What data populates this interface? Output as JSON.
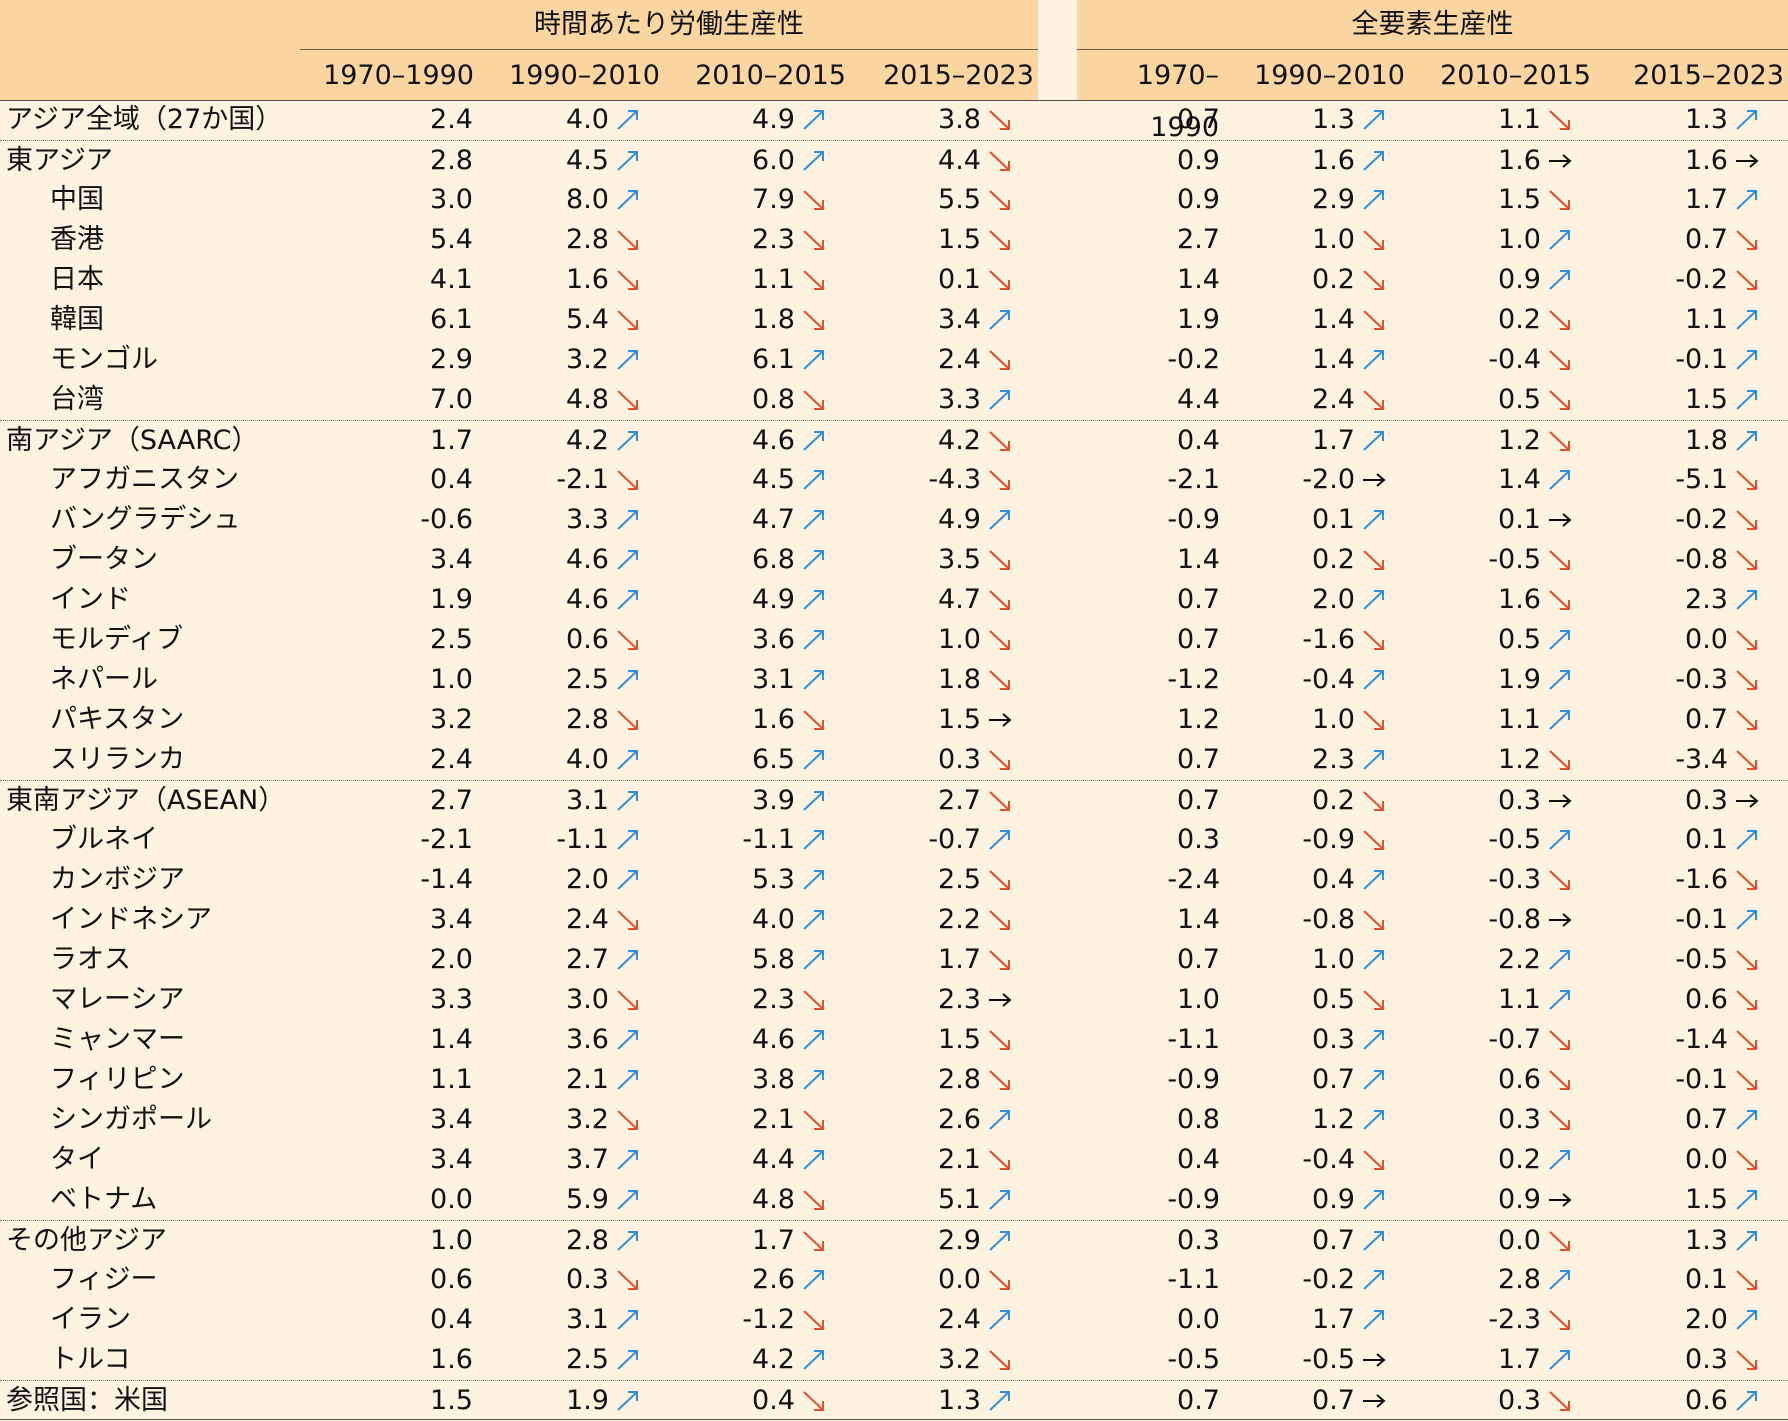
{
  "groups": [
    {
      "label": "時間あたり労働生産性"
    },
    {
      "label": "全要素生産性"
    }
  ],
  "periods": [
    "1970–1990",
    "1990–2010",
    "2010–2015",
    "2015–2023",
    "1970–1990",
    "1990–2010",
    "2010–2015",
    "2015–2023"
  ],
  "colors": {
    "header_bg": "#fcd6a0",
    "body_bg": "#fef2e0",
    "up": "#2f8fd8",
    "down": "#e0502a",
    "flat": "#111111"
  },
  "rows": [
    {
      "name": "アジア全域（27か国）",
      "indent": false,
      "sep": false,
      "cells": [
        [
          "2.4",
          ""
        ],
        [
          "4.0",
          "up"
        ],
        [
          "4.9",
          "up"
        ],
        [
          "3.8",
          "down"
        ],
        [
          "0.7",
          ""
        ],
        [
          "1.3",
          "up"
        ],
        [
          "1.1",
          "down"
        ],
        [
          "1.3",
          "up"
        ]
      ]
    },
    {
      "name": "東アジア",
      "indent": false,
      "sep": true,
      "cells": [
        [
          "2.8",
          ""
        ],
        [
          "4.5",
          "up"
        ],
        [
          "6.0",
          "up"
        ],
        [
          "4.4",
          "down"
        ],
        [
          "0.9",
          ""
        ],
        [
          "1.6",
          "up"
        ],
        [
          "1.6",
          "flat"
        ],
        [
          "1.6",
          "flat"
        ]
      ]
    },
    {
      "name": "中国",
      "indent": true,
      "sep": false,
      "cells": [
        [
          "3.0",
          ""
        ],
        [
          "8.0",
          "up"
        ],
        [
          "7.9",
          "down"
        ],
        [
          "5.5",
          "down"
        ],
        [
          "0.9",
          ""
        ],
        [
          "2.9",
          "up"
        ],
        [
          "1.5",
          "down"
        ],
        [
          "1.7",
          "up"
        ]
      ]
    },
    {
      "name": "香港",
      "indent": true,
      "sep": false,
      "cells": [
        [
          "5.4",
          ""
        ],
        [
          "2.8",
          "down"
        ],
        [
          "2.3",
          "down"
        ],
        [
          "1.5",
          "down"
        ],
        [
          "2.7",
          ""
        ],
        [
          "1.0",
          "down"
        ],
        [
          "1.0",
          "up"
        ],
        [
          "0.7",
          "down"
        ]
      ]
    },
    {
      "name": "日本",
      "indent": true,
      "sep": false,
      "cells": [
        [
          "4.1",
          ""
        ],
        [
          "1.6",
          "down"
        ],
        [
          "1.1",
          "down"
        ],
        [
          "0.1",
          "down"
        ],
        [
          "1.4",
          ""
        ],
        [
          "0.2",
          "down"
        ],
        [
          "0.9",
          "up"
        ],
        [
          "-0.2",
          "down"
        ]
      ]
    },
    {
      "name": "韓国",
      "indent": true,
      "sep": false,
      "cells": [
        [
          "6.1",
          ""
        ],
        [
          "5.4",
          "down"
        ],
        [
          "1.8",
          "down"
        ],
        [
          "3.4",
          "up"
        ],
        [
          "1.9",
          ""
        ],
        [
          "1.4",
          "down"
        ],
        [
          "0.2",
          "down"
        ],
        [
          "1.1",
          "up"
        ]
      ]
    },
    {
      "name": "モンゴル",
      "indent": true,
      "sep": false,
      "cells": [
        [
          "2.9",
          ""
        ],
        [
          "3.2",
          "up"
        ],
        [
          "6.1",
          "up"
        ],
        [
          "2.4",
          "down"
        ],
        [
          "-0.2",
          ""
        ],
        [
          "1.4",
          "up"
        ],
        [
          "-0.4",
          "down"
        ],
        [
          "-0.1",
          "up"
        ]
      ]
    },
    {
      "name": "台湾",
      "indent": true,
      "sep": false,
      "cells": [
        [
          "7.0",
          ""
        ],
        [
          "4.8",
          "down"
        ],
        [
          "0.8",
          "down"
        ],
        [
          "3.3",
          "up"
        ],
        [
          "4.4",
          ""
        ],
        [
          "2.4",
          "down"
        ],
        [
          "0.5",
          "down"
        ],
        [
          "1.5",
          "up"
        ]
      ]
    },
    {
      "name": "南アジア（SAARC）",
      "indent": false,
      "sep": true,
      "cells": [
        [
          "1.7",
          ""
        ],
        [
          "4.2",
          "up"
        ],
        [
          "4.6",
          "up"
        ],
        [
          "4.2",
          "down"
        ],
        [
          "0.4",
          ""
        ],
        [
          "1.7",
          "up"
        ],
        [
          "1.2",
          "down"
        ],
        [
          "1.8",
          "up"
        ]
      ]
    },
    {
      "name": "アフガニスタン",
      "indent": true,
      "sep": false,
      "cells": [
        [
          "0.4",
          ""
        ],
        [
          "-2.1",
          "down"
        ],
        [
          "4.5",
          "up"
        ],
        [
          "-4.3",
          "down"
        ],
        [
          "-2.1",
          ""
        ],
        [
          "-2.0",
          "flat"
        ],
        [
          "1.4",
          "up"
        ],
        [
          "-5.1",
          "down"
        ]
      ]
    },
    {
      "name": "バングラデシュ",
      "indent": true,
      "sep": false,
      "cells": [
        [
          "-0.6",
          ""
        ],
        [
          "3.3",
          "up"
        ],
        [
          "4.7",
          "up"
        ],
        [
          "4.9",
          "up"
        ],
        [
          "-0.9",
          ""
        ],
        [
          "0.1",
          "up"
        ],
        [
          "0.1",
          "flat"
        ],
        [
          "-0.2",
          "down"
        ]
      ]
    },
    {
      "name": "ブータン",
      "indent": true,
      "sep": false,
      "cells": [
        [
          "3.4",
          ""
        ],
        [
          "4.6",
          "up"
        ],
        [
          "6.8",
          "up"
        ],
        [
          "3.5",
          "down"
        ],
        [
          "1.4",
          ""
        ],
        [
          "0.2",
          "down"
        ],
        [
          "-0.5",
          "down"
        ],
        [
          "-0.8",
          "down"
        ]
      ]
    },
    {
      "name": "インド",
      "indent": true,
      "sep": false,
      "cells": [
        [
          "1.9",
          ""
        ],
        [
          "4.6",
          "up"
        ],
        [
          "4.9",
          "up"
        ],
        [
          "4.7",
          "down"
        ],
        [
          "0.7",
          ""
        ],
        [
          "2.0",
          "up"
        ],
        [
          "1.6",
          "down"
        ],
        [
          "2.3",
          "up"
        ]
      ]
    },
    {
      "name": "モルディブ",
      "indent": true,
      "sep": false,
      "cells": [
        [
          "2.5",
          ""
        ],
        [
          "0.6",
          "down"
        ],
        [
          "3.6",
          "up"
        ],
        [
          "1.0",
          "down"
        ],
        [
          "0.7",
          ""
        ],
        [
          "-1.6",
          "down"
        ],
        [
          "0.5",
          "up"
        ],
        [
          "0.0",
          "down"
        ]
      ]
    },
    {
      "name": "ネパール",
      "indent": true,
      "sep": false,
      "cells": [
        [
          "1.0",
          ""
        ],
        [
          "2.5",
          "up"
        ],
        [
          "3.1",
          "up"
        ],
        [
          "1.8",
          "down"
        ],
        [
          "-1.2",
          ""
        ],
        [
          "-0.4",
          "up"
        ],
        [
          "1.9",
          "up"
        ],
        [
          "-0.3",
          "down"
        ]
      ]
    },
    {
      "name": "パキスタン",
      "indent": true,
      "sep": false,
      "cells": [
        [
          "3.2",
          ""
        ],
        [
          "2.8",
          "down"
        ],
        [
          "1.6",
          "down"
        ],
        [
          "1.5",
          "flat"
        ],
        [
          "1.2",
          ""
        ],
        [
          "1.0",
          "down"
        ],
        [
          "1.1",
          "up"
        ],
        [
          "0.7",
          "down"
        ]
      ]
    },
    {
      "name": "スリランカ",
      "indent": true,
      "sep": false,
      "cells": [
        [
          "2.4",
          ""
        ],
        [
          "4.0",
          "up"
        ],
        [
          "6.5",
          "up"
        ],
        [
          "0.3",
          "down"
        ],
        [
          "0.7",
          ""
        ],
        [
          "2.3",
          "up"
        ],
        [
          "1.2",
          "down"
        ],
        [
          "-3.4",
          "down"
        ]
      ]
    },
    {
      "name": "東南アジア（ASEAN）",
      "indent": false,
      "sep": true,
      "cells": [
        [
          "2.7",
          ""
        ],
        [
          "3.1",
          "up"
        ],
        [
          "3.9",
          "up"
        ],
        [
          "2.7",
          "down"
        ],
        [
          "0.7",
          ""
        ],
        [
          "0.2",
          "down"
        ],
        [
          "0.3",
          "flat"
        ],
        [
          "0.3",
          "flat"
        ]
      ]
    },
    {
      "name": "ブルネイ",
      "indent": true,
      "sep": false,
      "cells": [
        [
          "-2.1",
          ""
        ],
        [
          "-1.1",
          "up"
        ],
        [
          "-1.1",
          "up"
        ],
        [
          "-0.7",
          "up"
        ],
        [
          "0.3",
          ""
        ],
        [
          "-0.9",
          "down"
        ],
        [
          "-0.5",
          "up"
        ],
        [
          "0.1",
          "up"
        ]
      ]
    },
    {
      "name": "カンボジア",
      "indent": true,
      "sep": false,
      "cells": [
        [
          "-1.4",
          ""
        ],
        [
          "2.0",
          "up"
        ],
        [
          "5.3",
          "up"
        ],
        [
          "2.5",
          "down"
        ],
        [
          "-2.4",
          ""
        ],
        [
          "0.4",
          "up"
        ],
        [
          "-0.3",
          "down"
        ],
        [
          "-1.6",
          "down"
        ]
      ]
    },
    {
      "name": "インドネシア",
      "indent": true,
      "sep": false,
      "cells": [
        [
          "3.4",
          ""
        ],
        [
          "2.4",
          "down"
        ],
        [
          "4.0",
          "up"
        ],
        [
          "2.2",
          "down"
        ],
        [
          "1.4",
          ""
        ],
        [
          "-0.8",
          "down"
        ],
        [
          "-0.8",
          "flat"
        ],
        [
          "-0.1",
          "up"
        ]
      ]
    },
    {
      "name": "ラオス",
      "indent": true,
      "sep": false,
      "cells": [
        [
          "2.0",
          ""
        ],
        [
          "2.7",
          "up"
        ],
        [
          "5.8",
          "up"
        ],
        [
          "1.7",
          "down"
        ],
        [
          "0.7",
          ""
        ],
        [
          "1.0",
          "up"
        ],
        [
          "2.2",
          "up"
        ],
        [
          "-0.5",
          "down"
        ]
      ]
    },
    {
      "name": "マレーシア",
      "indent": true,
      "sep": false,
      "cells": [
        [
          "3.3",
          ""
        ],
        [
          "3.0",
          "down"
        ],
        [
          "2.3",
          "down"
        ],
        [
          "2.3",
          "flat"
        ],
        [
          "1.0",
          ""
        ],
        [
          "0.5",
          "down"
        ],
        [
          "1.1",
          "up"
        ],
        [
          "0.6",
          "down"
        ]
      ]
    },
    {
      "name": "ミャンマー",
      "indent": true,
      "sep": false,
      "cells": [
        [
          "1.4",
          ""
        ],
        [
          "3.6",
          "up"
        ],
        [
          "4.6",
          "up"
        ],
        [
          "1.5",
          "down"
        ],
        [
          "-1.1",
          ""
        ],
        [
          "0.3",
          "up"
        ],
        [
          "-0.7",
          "down"
        ],
        [
          "-1.4",
          "down"
        ]
      ]
    },
    {
      "name": "フィリピン",
      "indent": true,
      "sep": false,
      "cells": [
        [
          "1.1",
          ""
        ],
        [
          "2.1",
          "up"
        ],
        [
          "3.8",
          "up"
        ],
        [
          "2.8",
          "down"
        ],
        [
          "-0.9",
          ""
        ],
        [
          "0.7",
          "up"
        ],
        [
          "0.6",
          "down"
        ],
        [
          "-0.1",
          "down"
        ]
      ]
    },
    {
      "name": "シンガポール",
      "indent": true,
      "sep": false,
      "cells": [
        [
          "3.4",
          ""
        ],
        [
          "3.2",
          "down"
        ],
        [
          "2.1",
          "down"
        ],
        [
          "2.6",
          "up"
        ],
        [
          "0.8",
          ""
        ],
        [
          "1.2",
          "up"
        ],
        [
          "0.3",
          "down"
        ],
        [
          "0.7",
          "up"
        ]
      ]
    },
    {
      "name": "タイ",
      "indent": true,
      "sep": false,
      "cells": [
        [
          "3.4",
          ""
        ],
        [
          "3.7",
          "up"
        ],
        [
          "4.4",
          "up"
        ],
        [
          "2.1",
          "down"
        ],
        [
          "0.4",
          ""
        ],
        [
          "-0.4",
          "down"
        ],
        [
          "0.2",
          "up"
        ],
        [
          "0.0",
          "down"
        ]
      ]
    },
    {
      "name": "ベトナム",
      "indent": true,
      "sep": false,
      "cells": [
        [
          "0.0",
          ""
        ],
        [
          "5.9",
          "up"
        ],
        [
          "4.8",
          "down"
        ],
        [
          "5.1",
          "up"
        ],
        [
          "-0.9",
          ""
        ],
        [
          "0.9",
          "up"
        ],
        [
          "0.9",
          "flat"
        ],
        [
          "1.5",
          "up"
        ]
      ]
    },
    {
      "name": "その他アジア",
      "indent": false,
      "sep": true,
      "cells": [
        [
          "1.0",
          ""
        ],
        [
          "2.8",
          "up"
        ],
        [
          "1.7",
          "down"
        ],
        [
          "2.9",
          "up"
        ],
        [
          "0.3",
          ""
        ],
        [
          "0.7",
          "up"
        ],
        [
          "0.0",
          "down"
        ],
        [
          "1.3",
          "up"
        ]
      ]
    },
    {
      "name": "フィジー",
      "indent": true,
      "sep": false,
      "cells": [
        [
          "0.6",
          ""
        ],
        [
          "0.3",
          "down"
        ],
        [
          "2.6",
          "up"
        ],
        [
          "0.0",
          "down"
        ],
        [
          "-1.1",
          ""
        ],
        [
          "-0.2",
          "up"
        ],
        [
          "2.8",
          "up"
        ],
        [
          "0.1",
          "down"
        ]
      ]
    },
    {
      "name": "イラン",
      "indent": true,
      "sep": false,
      "cells": [
        [
          "0.4",
          ""
        ],
        [
          "3.1",
          "up"
        ],
        [
          "-1.2",
          "down"
        ],
        [
          "2.4",
          "up"
        ],
        [
          "0.0",
          ""
        ],
        [
          "1.7",
          "up"
        ],
        [
          "-2.3",
          "down"
        ],
        [
          "2.0",
          "up"
        ]
      ]
    },
    {
      "name": "トルコ",
      "indent": true,
      "sep": false,
      "cells": [
        [
          "1.6",
          ""
        ],
        [
          "2.5",
          "up"
        ],
        [
          "4.2",
          "up"
        ],
        [
          "3.2",
          "down"
        ],
        [
          "-0.5",
          ""
        ],
        [
          "-0.5",
          "flat"
        ],
        [
          "1.7",
          "up"
        ],
        [
          "0.3",
          "down"
        ]
      ]
    },
    {
      "name": "参照国：米国",
      "indent": false,
      "sep": true,
      "cells": [
        [
          "1.5",
          ""
        ],
        [
          "1.9",
          "up"
        ],
        [
          "0.4",
          "down"
        ],
        [
          "1.3",
          "up"
        ],
        [
          "0.7",
          ""
        ],
        [
          "0.7",
          "flat"
        ],
        [
          "0.3",
          "down"
        ],
        [
          "0.6",
          "up"
        ]
      ]
    }
  ]
}
